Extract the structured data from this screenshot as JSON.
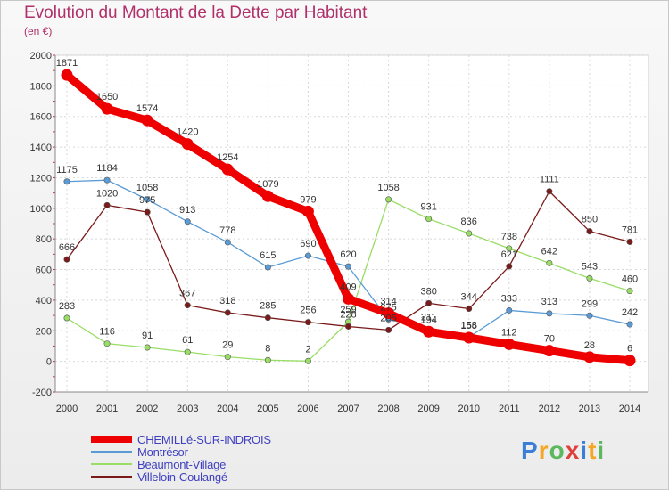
{
  "header": {
    "title": "Evolution du Montant de la Dette par Habitant",
    "subtitle": "(en €)"
  },
  "brand": {
    "letters": [
      "P",
      "r",
      "o",
      "x",
      "i",
      "t",
      "i"
    ],
    "colors": [
      "#3a7fd5",
      "#f5a623",
      "#5cb85c",
      "#e0403a",
      "#3a7fd5",
      "#f5a623",
      "#5cb85c"
    ]
  },
  "chart_data": {
    "type": "line",
    "title": "Evolution du Montant de la Dette par Habitant",
    "subtitle": "(en €)",
    "xlabel": "",
    "ylabel": "",
    "ylim": [
      -200,
      2000
    ],
    "yticks": [
      -200,
      0,
      200,
      400,
      600,
      800,
      1000,
      1200,
      1400,
      1600,
      1800,
      2000
    ],
    "grid": true,
    "legend_position": "bottom-left",
    "categories": [
      "2000",
      "2001",
      "2002",
      "2003",
      "2004",
      "2005",
      "2006",
      "2007",
      "2008",
      "2009",
      "2010",
      "2011",
      "2012",
      "2013",
      "2014"
    ],
    "series": [
      {
        "name": "CHEMILLé-SUR-INDROIS",
        "color": "#ee0000",
        "values": [
          1871,
          1650,
          1574,
          1420,
          1254,
          1079,
          979,
          409,
          314,
          194,
          155,
          112,
          70,
          28,
          6
        ]
      },
      {
        "name": "Montrésor",
        "color": "#5b9bd5",
        "values": [
          1175,
          1184,
          1058,
          913,
          778,
          615,
          690,
          620,
          275,
          211,
          158,
          333,
          313,
          299,
          242
        ]
      },
      {
        "name": "Beaumont-Village",
        "color": "#99dd66",
        "values": [
          283,
          116,
          91,
          61,
          29,
          8,
          2,
          259,
          1058,
          931,
          836,
          738,
          642,
          543,
          460
        ]
      },
      {
        "name": "Villeloin-Coulangé",
        "color": "#7a1a1a",
        "values": [
          666,
          1020,
          975,
          367,
          318,
          285,
          256,
          228,
          205,
          380,
          344,
          621,
          1111,
          850,
          781
        ]
      }
    ]
  }
}
